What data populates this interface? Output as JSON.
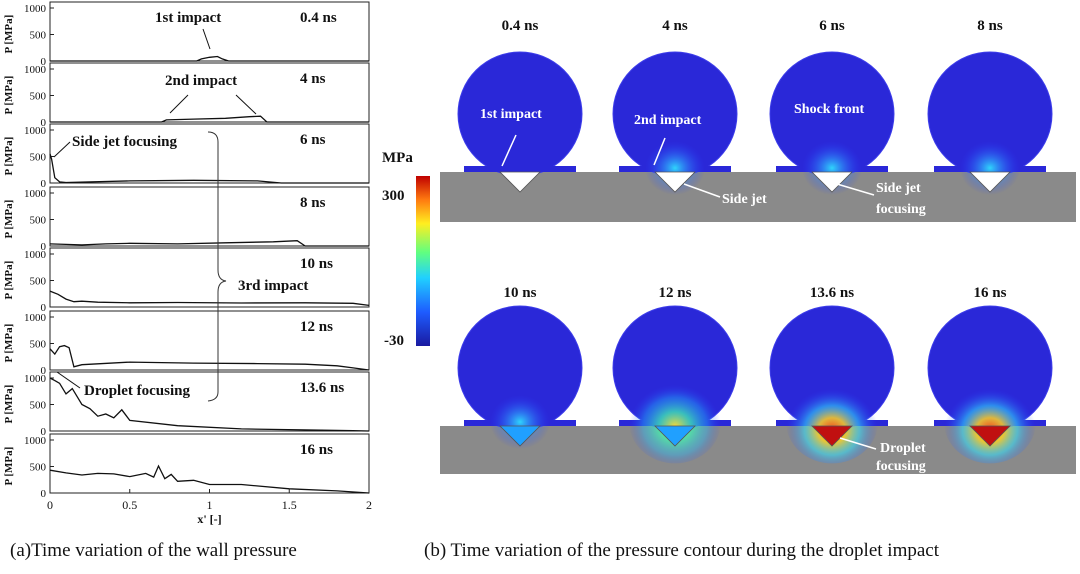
{
  "captions": {
    "a": "(a)Time variation of the wall pressure",
    "b": "(b) Time variation of the pressure contour during the droplet impact"
  },
  "left_panel": {
    "ylabel": "P [MPa]",
    "xlabel": "x' [-]",
    "x_ticks": [
      "0",
      "0.5",
      "1",
      "1.5",
      "2"
    ],
    "y_ticks": [
      "0",
      "500",
      "1000"
    ]
  },
  "chart_data": {
    "type": "line",
    "title": "Time variation of the wall pressure",
    "xlabel": "x' [-]",
    "ylabel": "P [MPa]",
    "xlim": [
      0,
      2
    ],
    "ylim": [
      0,
      1000
    ],
    "series": [
      {
        "name": "0.4 ns",
        "time": "0.4 ns",
        "x": [
          0,
          0.92,
          0.95,
          1.0,
          1.05,
          1.08,
          1.12,
          2
        ],
        "y": [
          0,
          0,
          40,
          70,
          85,
          40,
          0,
          0
        ]
      },
      {
        "name": "4 ns",
        "time": "4 ns",
        "x": [
          0,
          0.7,
          0.73,
          0.9,
          1.1,
          1.25,
          1.32,
          1.36,
          2
        ],
        "y": [
          0,
          0,
          40,
          55,
          70,
          100,
          110,
          0,
          0
        ]
      },
      {
        "name": "6 ns",
        "time": "6 ns",
        "x": [
          0,
          0.01,
          0.03,
          0.06,
          0.1,
          0.5,
          0.9,
          1.3,
          1.45,
          2
        ],
        "y": [
          550,
          450,
          100,
          20,
          10,
          40,
          50,
          40,
          0,
          0
        ]
      },
      {
        "name": "8 ns",
        "time": "8 ns",
        "x": [
          0,
          0.1,
          0.2,
          0.35,
          0.5,
          0.8,
          1.1,
          1.4,
          1.55,
          1.6,
          2
        ],
        "y": [
          40,
          30,
          20,
          40,
          50,
          40,
          60,
          80,
          100,
          0,
          0
        ]
      },
      {
        "name": "10 ns",
        "time": "10 ns",
        "x": [
          0,
          0.05,
          0.1,
          0.15,
          0.2,
          0.3,
          0.5,
          0.8,
          1.2,
          1.6,
          1.9,
          2
        ],
        "y": [
          300,
          240,
          150,
          100,
          110,
          90,
          80,
          85,
          75,
          80,
          70,
          30
        ]
      },
      {
        "name": "12 ns",
        "time": "12 ns",
        "x": [
          0,
          0.03,
          0.06,
          0.09,
          0.12,
          0.15,
          0.2,
          0.5,
          0.9,
          1.3,
          1.6,
          1.8,
          1.9,
          2
        ],
        "y": [
          400,
          300,
          440,
          460,
          420,
          60,
          100,
          150,
          130,
          120,
          110,
          80,
          40,
          0
        ]
      },
      {
        "name": "13.6 ns",
        "time": "13.6 ns",
        "x": [
          0,
          0.03,
          0.06,
          0.1,
          0.14,
          0.18,
          0.2,
          0.25,
          0.3,
          0.35,
          0.4,
          0.45,
          0.5,
          0.8,
          1.2,
          1.6,
          1.9,
          2
        ],
        "y": [
          1000,
          950,
          900,
          700,
          800,
          600,
          500,
          420,
          280,
          320,
          250,
          400,
          200,
          100,
          40,
          20,
          5,
          0
        ]
      },
      {
        "name": "16 ns",
        "time": "16 ns",
        "x": [
          0,
          0.1,
          0.2,
          0.3,
          0.4,
          0.5,
          0.6,
          0.65,
          0.68,
          0.72,
          0.76,
          0.8,
          0.9,
          1.0,
          1.2,
          1.5,
          1.8,
          2
        ],
        "y": [
          430,
          380,
          340,
          370,
          360,
          310,
          370,
          300,
          510,
          270,
          350,
          220,
          240,
          160,
          160,
          80,
          40,
          0
        ]
      }
    ],
    "annotations": [
      "1st impact",
      "2nd impact",
      "Side jet focusing",
      "3rd impact",
      "Droplet focusing"
    ]
  },
  "right_panel": {
    "colorbar": {
      "unit": "MPa",
      "max_label": "300",
      "min_label": "-30",
      "max": 300,
      "min": -30
    },
    "frames": [
      {
        "time": "0.4 ns"
      },
      {
        "time": "4 ns"
      },
      {
        "time": "6 ns"
      },
      {
        "time": "8 ns"
      },
      {
        "time": "10 ns"
      },
      {
        "time": "12 ns"
      },
      {
        "time": "13.6 ns"
      },
      {
        "time": "16 ns"
      }
    ],
    "labels": {
      "first_impact": "1st impact",
      "second_impact": "2nd impact",
      "shock_front": "Shock front",
      "side_jet": "Side jet",
      "side_jet_focusing_1": "Side jet",
      "side_jet_focusing_2": "focusing",
      "droplet_focusing_1": "Droplet",
      "droplet_focusing_2": "focusing"
    }
  }
}
